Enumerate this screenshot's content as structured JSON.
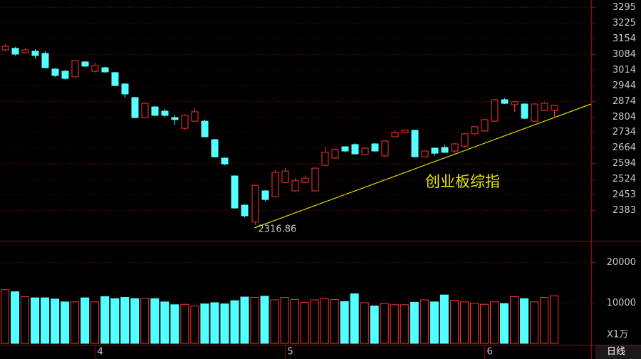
{
  "chart_data": [
    {
      "type": "candlestick",
      "annotations": [
        {
          "text": "2316.86"
        },
        {
          "text": "创业板综指"
        }
      ],
      "categories": [
        null,
        null,
        null,
        null,
        null,
        null,
        null,
        null,
        null,
        "4",
        null,
        null,
        null,
        null,
        null,
        null,
        null,
        null,
        null,
        null,
        null,
        null,
        null,
        null,
        null,
        null,
        null,
        null,
        "5",
        null,
        null,
        null,
        null,
        null,
        null,
        null,
        null,
        null,
        null,
        null,
        null,
        null,
        null,
        null,
        null,
        null,
        null,
        null,
        "6",
        null,
        null,
        null,
        null,
        null,
        null,
        null
      ],
      "open": [
        3103,
        3110,
        3090,
        3097,
        3087,
        3017,
        3007,
        2982,
        3049,
        3007,
        3023,
        3001,
        2950,
        2889,
        2799,
        2847,
        2828,
        2799,
        2751,
        2783,
        2783,
        2700,
        2617,
        2537,
        2406,
        2330,
        2470,
        2444,
        2508,
        2470,
        2508,
        2470,
        2585,
        2617,
        2668,
        2678,
        2633,
        2681,
        2627,
        2713,
        2732,
        2742,
        2623,
        2662,
        2665,
        2649,
        2671,
        2726,
        2739,
        2783,
        2879,
        2857,
        2860,
        2783,
        2831,
        2831
      ],
      "high": [
        3129,
        3116,
        3110,
        3106,
        3097,
        3020,
        3014,
        3058,
        3052,
        3046,
        3027,
        3004,
        2953,
        2892,
        2867,
        2850,
        2837,
        2809,
        2815,
        2841,
        2790,
        2703,
        2620,
        2540,
        2409,
        2498,
        2473,
        2563,
        2572,
        2527,
        2540,
        2575,
        2668,
        2662,
        2671,
        2684,
        2665,
        2684,
        2697,
        2742,
        2745,
        2745,
        2652,
        2665,
        2678,
        2684,
        2729,
        2761,
        2793,
        2883,
        2886,
        2873,
        2863,
        2863,
        2867,
        2857
      ],
      "low": [
        3097,
        3078,
        3087,
        3062,
        3020,
        2982,
        2969,
        2978,
        3027,
        3001,
        3001,
        2940,
        2889,
        2796,
        2796,
        2806,
        2802,
        2767,
        2742,
        2780,
        2710,
        2620,
        2585,
        2390,
        2352,
        2316.86,
        2424,
        2441,
        2505,
        2467,
        2505,
        2467,
        2582,
        2614,
        2643,
        2633,
        2630,
        2646,
        2623,
        2710,
        2729,
        2620,
        2620,
        2627,
        2640,
        2630,
        2665,
        2722,
        2736,
        2780,
        2860,
        2825,
        2793,
        2780,
        2828,
        2796
      ],
      "close": [
        3119,
        3084,
        3103,
        3078,
        3023,
        2988,
        2975,
        3055,
        3030,
        3033,
        3004,
        2943,
        2905,
        2799,
        2863,
        2809,
        2809,
        2790,
        2809,
        2825,
        2713,
        2623,
        2591,
        2393,
        2358,
        2495,
        2431,
        2553,
        2559,
        2515,
        2527,
        2572,
        2643,
        2655,
        2649,
        2636,
        2662,
        2649,
        2694,
        2732,
        2742,
        2623,
        2649,
        2639,
        2643,
        2681,
        2726,
        2758,
        2790,
        2879,
        2863,
        2870,
        2796,
        2860,
        2863,
        2854
      ],
      "up_color": "#ff3232",
      "down_color": "#54ffff",
      "grid_color": "#8b0000",
      "ylim": [
        2246,
        3327
      ],
      "yticks": [
        2383,
        2453,
        2524,
        2594,
        2664,
        2734,
        2804,
        2874,
        2944,
        3014,
        3084,
        3154,
        3225,
        3295
      ],
      "grid": true
    },
    {
      "type": "bar",
      "unit_label": "X1万",
      "period_label": "日线",
      "values": [
        13200,
        12700,
        11500,
        11200,
        11200,
        10900,
        10200,
        10200,
        11200,
        10200,
        11500,
        11000,
        11300,
        11000,
        11100,
        11000,
        10200,
        9500,
        9600,
        9200,
        9700,
        10000,
        9700,
        10500,
        11400,
        11300,
        11600,
        10700,
        11300,
        10800,
        10100,
        10700,
        11000,
        10800,
        10300,
        12200,
        10000,
        9200,
        9800,
        9500,
        9500,
        10100,
        10700,
        10200,
        11900,
        10600,
        10200,
        9900,
        9600,
        10200,
        9800,
        11500,
        11000,
        10200,
        11300,
        11700
      ],
      "ylim": [
        0,
        24900
      ],
      "yticks": [
        10000,
        20000
      ],
      "grid": true
    }
  ]
}
